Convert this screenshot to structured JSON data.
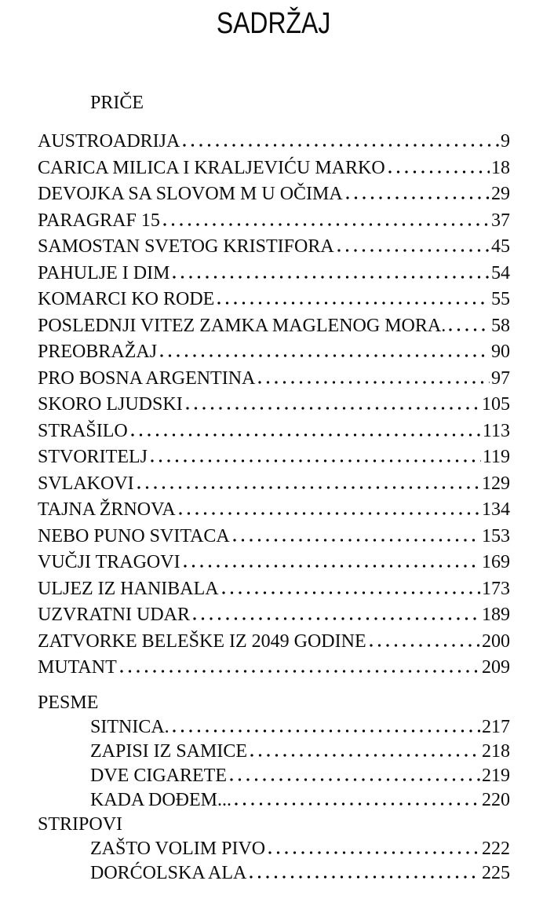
{
  "page_title": "SADRŽAJ",
  "sections": [
    {
      "heading": "PRIČE",
      "entries": [
        {
          "title": "AUSTROADRIJA",
          "page": "9"
        },
        {
          "title": "CARICA MILICA I KRALJEVIĆU MARKO",
          "page": "18"
        },
        {
          "title": "DEVOJKA SA SLOVOM M U OČIMA",
          "page": "29"
        },
        {
          "title": "PARAGRAF 15",
          "page": "37"
        },
        {
          "title": "SAMOSTAN SVETOG KRISTIFORA",
          "page": "45"
        },
        {
          "title": "PAHULJE I DIM",
          "page": "54"
        },
        {
          "title": "KOMARCI KO RODE",
          "page": "55"
        },
        {
          "title": "POSLEDNJI VITEZ ZAMKA MAGLENOG MORA.",
          "page": "58"
        },
        {
          "title": "PREOBRAŽAJ",
          "page": "90"
        },
        {
          "title": "PRO BOSNA ARGENTINA",
          "page": "97"
        },
        {
          "title": "SKORO LJUDSKI",
          "page": "105"
        },
        {
          "title": "STRAŠILO",
          "page": "113"
        },
        {
          "title": "STVORITELJ",
          "page": "119"
        },
        {
          "title": "SVLAKOVI",
          "page": "129"
        },
        {
          "title": "TAJNA ŽRNOVA",
          "page": "134"
        },
        {
          "title": "NEBO PUNO SVITACA",
          "page": "153"
        },
        {
          "title": "VUČJI TRAGOVI",
          "page": "169"
        },
        {
          "title": "ULJEZ IZ HANIBALA",
          "page": "173"
        },
        {
          "title": "UZVRATNI UDAR",
          "page": "189"
        },
        {
          "title": "ZATVORKE BELEŠKE IZ 2049 GODINE",
          "page": "200"
        },
        {
          "title": "MUTANT",
          "page": "209"
        }
      ]
    },
    {
      "heading": "PESME",
      "entries": [
        {
          "title": "SITNICA.",
          "page": "217"
        },
        {
          "title": "ZAPISI IZ SAMICE",
          "page": "218"
        },
        {
          "title": "DVE CIGARETE",
          "page": "219"
        },
        {
          "title": "KADA DOĐEM...",
          "page": "220"
        }
      ]
    },
    {
      "heading": "STRIPOVI",
      "entries": [
        {
          "title": "ZAŠTO VOLIM PIVO",
          "page": "222"
        },
        {
          "title": "DORĆOLSKA ALA",
          "page": "225"
        }
      ]
    }
  ]
}
